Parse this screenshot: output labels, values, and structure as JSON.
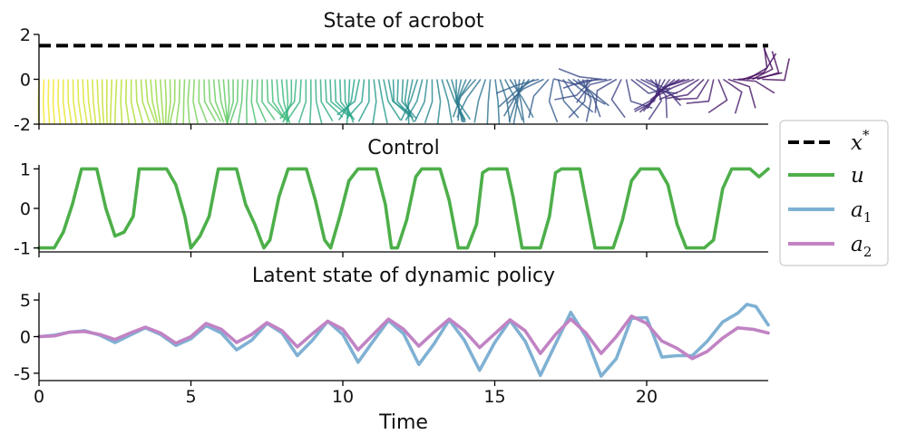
{
  "chart_data": [
    {
      "type": "line",
      "title": "State of acrobot",
      "ylim": [
        -2,
        2
      ],
      "xlim": [
        0,
        24
      ],
      "ytick_labels": [
        "2",
        "0",
        "-2"
      ],
      "ytick_values": [
        2,
        0,
        -2
      ],
      "series": [
        {
          "name": "x*",
          "legend_label": "x",
          "legend_sup": "*",
          "color": "#000000",
          "style": "dashed",
          "y": 1.5
        }
      ],
      "pendulum": {
        "n": 150,
        "t_start": 0,
        "t_end": 23.8,
        "x_scale": 0.48,
        "link_length": 1.0,
        "colormap": "viridis_reversed"
      }
    },
    {
      "type": "line",
      "title": "Control",
      "ylim": [
        -1.1,
        1.1
      ],
      "xlim": [
        0,
        24
      ],
      "ytick_labels": [
        "1",
        "0",
        "-1"
      ],
      "ytick_values": [
        1,
        0,
        -1
      ],
      "series": [
        {
          "name": "u",
          "legend_label": "u",
          "color": "#4daf4a",
          "x": [
            0.0,
            0.5,
            0.8,
            1.1,
            1.4,
            1.6,
            1.9,
            2.2,
            2.5,
            2.8,
            3.1,
            3.3,
            3.6,
            3.9,
            4.2,
            4.5,
            4.8,
            5.0,
            5.3,
            5.6,
            5.9,
            6.2,
            6.5,
            6.8,
            7.1,
            7.4,
            7.6,
            7.9,
            8.2,
            8.5,
            8.8,
            9.1,
            9.4,
            9.6,
            9.9,
            10.2,
            10.5,
            10.8,
            11.1,
            11.4,
            11.6,
            11.8,
            12.1,
            12.4,
            12.6,
            12.9,
            13.2,
            13.5,
            13.8,
            14.1,
            14.4,
            14.6,
            14.8,
            15.1,
            15.4,
            15.6,
            15.9,
            16.2,
            16.5,
            16.8,
            17.0,
            17.2,
            17.5,
            17.8,
            18.0,
            18.3,
            18.6,
            18.9,
            19.2,
            19.5,
            19.8,
            20.1,
            20.4,
            20.7,
            21.0,
            21.3,
            21.6,
            21.9,
            22.2,
            22.5,
            22.8,
            23.1,
            23.4,
            23.7,
            24.0
          ],
          "values": [
            -1.0,
            -1.0,
            -0.6,
            0.1,
            1.0,
            1.0,
            1.0,
            0.0,
            -0.7,
            -0.6,
            -0.2,
            1.0,
            1.0,
            1.0,
            1.0,
            0.6,
            -0.2,
            -1.0,
            -0.7,
            -0.2,
            1.0,
            1.0,
            1.0,
            0.1,
            -0.4,
            -1.0,
            -0.8,
            0.3,
            1.0,
            1.0,
            1.0,
            0.2,
            -0.8,
            -1.0,
            -0.2,
            0.7,
            1.0,
            1.0,
            1.0,
            0.1,
            -1.0,
            -1.0,
            -0.3,
            0.8,
            1.0,
            1.0,
            1.0,
            0.2,
            -1.0,
            -1.0,
            -0.4,
            0.9,
            1.0,
            1.0,
            1.0,
            0.3,
            -1.0,
            -1.0,
            -1.0,
            -0.2,
            0.9,
            1.0,
            1.0,
            1.0,
            0.2,
            -1.0,
            -1.0,
            -1.0,
            -0.3,
            0.7,
            1.0,
            1.0,
            1.0,
            0.6,
            -0.4,
            -1.0,
            -1.0,
            -1.0,
            -0.8,
            0.5,
            1.0,
            1.0,
            1.0,
            0.8,
            1.0
          ]
        },
        {
          "name": "a1",
          "legend_label": "a",
          "legend_sub": "1",
          "color": "#7fb1d3",
          "legend_only": true
        },
        {
          "name": "a2",
          "legend_label": "a",
          "legend_sub": "2",
          "color": "#c183c4",
          "legend_only": true
        }
      ]
    },
    {
      "type": "line",
      "title": "Latent state of dynamic policy",
      "xlabel": "Time",
      "ylim": [
        -6,
        6
      ],
      "xlim": [
        0,
        24
      ],
      "ytick_labels": [
        "5",
        "0",
        "-5"
      ],
      "ytick_values": [
        5,
        0,
        -5
      ],
      "xtick_labels": [
        "0",
        "5",
        "10",
        "15",
        "20"
      ],
      "xtick_values": [
        0,
        5,
        10,
        15,
        20
      ],
      "series": [
        {
          "name": "a1",
          "color": "#7fb1d3",
          "x": [
            0.0,
            0.5,
            1.0,
            1.5,
            2.0,
            2.5,
            3.0,
            3.5,
            4.0,
            4.5,
            5.0,
            5.5,
            6.0,
            6.5,
            7.0,
            7.5,
            8.0,
            8.5,
            9.0,
            9.5,
            10.0,
            10.5,
            11.0,
            11.5,
            12.0,
            12.5,
            13.0,
            13.5,
            14.0,
            14.5,
            15.0,
            15.5,
            16.0,
            16.5,
            17.0,
            17.5,
            18.0,
            18.5,
            19.0,
            19.5,
            20.0,
            20.5,
            21.0,
            21.5,
            22.0,
            22.5,
            23.0,
            23.3,
            23.6,
            24.0
          ],
          "values": [
            0.0,
            0.2,
            0.6,
            0.8,
            0.2,
            -0.8,
            0.2,
            1.2,
            0.3,
            -1.2,
            -0.3,
            1.5,
            0.5,
            -1.8,
            -0.5,
            1.8,
            0.5,
            -2.6,
            -0.5,
            2.1,
            0.3,
            -3.5,
            -0.6,
            2.2,
            0.4,
            -3.8,
            -1.0,
            2.3,
            -0.5,
            -4.6,
            -0.8,
            2.2,
            -0.6,
            -5.3,
            -1.0,
            3.3,
            0.0,
            -5.4,
            -3.0,
            2.5,
            2.6,
            -2.8,
            -2.6,
            -2.6,
            -0.6,
            2.0,
            3.2,
            4.4,
            4.1,
            1.6
          ]
        },
        {
          "name": "a2",
          "color": "#c183c4",
          "x": [
            0.0,
            0.5,
            1.0,
            1.5,
            2.0,
            2.5,
            3.0,
            3.5,
            4.0,
            4.5,
            5.0,
            5.5,
            6.0,
            6.5,
            7.0,
            7.5,
            8.0,
            8.5,
            9.0,
            9.5,
            10.0,
            10.5,
            11.0,
            11.5,
            12.0,
            12.5,
            13.0,
            13.5,
            14.0,
            14.5,
            15.0,
            15.5,
            16.0,
            16.5,
            17.0,
            17.5,
            18.0,
            18.5,
            19.0,
            19.5,
            20.0,
            20.5,
            21.0,
            21.5,
            22.0,
            22.5,
            23.0,
            23.5,
            24.0
          ],
          "values": [
            0.0,
            0.1,
            0.6,
            0.7,
            0.3,
            -0.4,
            0.5,
            1.3,
            0.5,
            -0.9,
            0.0,
            1.8,
            1.0,
            -0.8,
            0.3,
            1.9,
            0.8,
            -1.4,
            0.4,
            2.1,
            1.0,
            -1.8,
            0.3,
            2.4,
            1.0,
            -1.3,
            0.6,
            2.4,
            0.8,
            -1.5,
            0.4,
            2.3,
            0.8,
            -2.3,
            0.3,
            2.4,
            0.5,
            -2.3,
            0.0,
            2.8,
            1.8,
            -0.6,
            -1.6,
            -3.0,
            -2.0,
            -0.2,
            1.2,
            1.0,
            0.5
          ]
        }
      ]
    }
  ]
}
